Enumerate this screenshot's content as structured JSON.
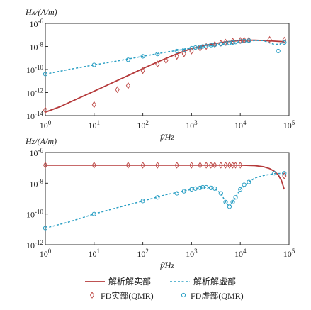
{
  "chart_data": [
    {
      "type": "line",
      "ylabel": "Hx/(A/m)",
      "xlabel": "f/Hz",
      "xscale": "log",
      "yscale": "log",
      "xlim": [
        1,
        100000
      ],
      "ylim": [
        1e-14,
        1e-06
      ],
      "x_ticks": [
        {
          "value": 1,
          "base": "10",
          "exp": "0"
        },
        {
          "value": 10,
          "base": "10",
          "exp": "1"
        },
        {
          "value": 100,
          "base": "10",
          "exp": "2"
        },
        {
          "value": 1000,
          "base": "10",
          "exp": "3"
        },
        {
          "value": 10000,
          "base": "10",
          "exp": "4"
        },
        {
          "value": 100000,
          "base": "10",
          "exp": "5"
        }
      ],
      "y_ticks": [
        {
          "value": 1e-06,
          "base": "10",
          "exp": "-6"
        },
        {
          "value": 1e-08,
          "base": "10",
          "exp": "-8"
        },
        {
          "value": 1e-10,
          "base": "10",
          "exp": "-10"
        },
        {
          "value": 1e-12,
          "base": "10",
          "exp": "-12"
        },
        {
          "value": 1e-14,
          "base": "10",
          "exp": "-14"
        }
      ],
      "series": [
        {
          "name": "解析解实部",
          "kind": "line",
          "color": "#b5393a",
          "x": [
            1,
            2,
            5,
            10,
            20,
            50,
            100,
            200,
            500,
            1000,
            2000,
            5000,
            10000,
            15000,
            20000,
            30000,
            50000,
            80000
          ],
          "y": [
            2e-14,
            6e-14,
            3.5e-13,
            1.3e-12,
            5e-12,
            3e-11,
            1.2e-10,
            4.5e-10,
            2.3e-09,
            6.5e-09,
            1.3e-08,
            2.5e-08,
            3.3e-08,
            3.5e-08,
            3.5e-08,
            3.3e-08,
            2.9e-08,
            2.6e-08
          ]
        },
        {
          "name": "解析解虚部",
          "kind": "dashed",
          "color": "#2a9fc4",
          "x": [
            1,
            3,
            10,
            30,
            100,
            300,
            1000,
            3000,
            10000,
            15000,
            20000,
            30000,
            40000,
            50000,
            65000,
            80000
          ],
          "y": [
            4e-11,
            1e-10,
            2.5e-10,
            5.5e-10,
            1.4e-09,
            3.2e-09,
            7e-09,
            1.3e-08,
            2.3e-08,
            2.9e-08,
            3.3e-08,
            3.2e-08,
            2e-08,
            1.5e-08,
            1.6e-08,
            2.6e-08
          ]
        },
        {
          "name": "FD实部(QMR)",
          "kind": "diamond",
          "color": "#c0504d",
          "x": [
            1,
            10,
            30,
            50,
            100,
            200,
            300,
            500,
            700,
            1000,
            1500,
            2000,
            3000,
            4000,
            5000,
            7000,
            10000,
            12000,
            15000,
            40000,
            80000
          ],
          "y": [
            3e-14,
            9e-14,
            1.8e-12,
            4e-12,
            8e-11,
            3e-10,
            6e-10,
            1.4e-09,
            2.3e-09,
            4e-09,
            7e-09,
            1e-08,
            1.5e-08,
            1.9e-08,
            2.3e-08,
            2.9e-08,
            3.3e-08,
            3.5e-08,
            3.5e-08,
            4e-08,
            3.5e-08
          ]
        },
        {
          "name": "FD虚部(QMR)",
          "kind": "circle",
          "color": "#2a9fc4",
          "x": [
            1,
            10,
            50,
            100,
            200,
            500,
            700,
            1000,
            1200,
            1500,
            1700,
            2000,
            2500,
            3000,
            4000,
            5000,
            6000,
            7000,
            8000,
            10000,
            12000,
            15000,
            60000,
            80000
          ],
          "y": [
            4e-11,
            2.5e-10,
            7e-10,
            1.4e-09,
            2.2e-09,
            4e-09,
            5e-09,
            7e-09,
            8e-09,
            9e-09,
            1e-08,
            1.1e-08,
            1.3e-08,
            1.4e-08,
            1.6e-08,
            1.8e-08,
            2e-08,
            2.2e-08,
            2.4e-08,
            2.7e-08,
            2.9e-08,
            3.2e-08,
            4e-09,
            2.2e-08
          ]
        }
      ]
    },
    {
      "type": "line",
      "ylabel": "Hz/(A/m)",
      "xlabel": "f/Hz",
      "xscale": "log",
      "yscale": "log",
      "xlim": [
        1,
        100000
      ],
      "ylim": [
        1e-12,
        1e-06
      ],
      "x_ticks": [
        {
          "value": 1,
          "base": "10",
          "exp": "0"
        },
        {
          "value": 10,
          "base": "10",
          "exp": "1"
        },
        {
          "value": 100,
          "base": "10",
          "exp": "2"
        },
        {
          "value": 1000,
          "base": "10",
          "exp": "3"
        },
        {
          "value": 10000,
          "base": "10",
          "exp": "4"
        },
        {
          "value": 100000,
          "base": "10",
          "exp": "5"
        }
      ],
      "y_ticks": [
        {
          "value": 1e-06,
          "base": "10",
          "exp": "-6"
        },
        {
          "value": 1e-08,
          "base": "10",
          "exp": "-8"
        },
        {
          "value": 1e-10,
          "base": "10",
          "exp": "-10"
        },
        {
          "value": 1e-12,
          "base": "10",
          "exp": "-12"
        }
      ],
      "series": [
        {
          "name": "解析解实部",
          "kind": "line",
          "color": "#b5393a",
          "x": [
            1,
            10,
            100,
            1000,
            5000,
            10000,
            20000,
            30000,
            40000,
            50000,
            60000,
            70000,
            80000
          ],
          "y": [
            1.5e-07,
            1.5e-07,
            1.5e-07,
            1.5e-07,
            1.5e-07,
            1.5e-07,
            1.4e-07,
            1.2e-07,
            9e-08,
            6e-08,
            3.5e-08,
            1.5e-08,
            4e-09
          ]
        },
        {
          "name": "解析解虚部",
          "kind": "dashed",
          "color": "#2a9fc4",
          "x": [
            1,
            3,
            10,
            30,
            100,
            300,
            1000,
            2000,
            3000,
            4000,
            5000,
            6000,
            7000,
            8000,
            10000,
            15000,
            20000,
            30000,
            50000,
            80000
          ],
          "y": [
            1.2e-11,
            3e-11,
            1e-10,
            2.6e-10,
            7e-10,
            1.8e-09,
            4e-09,
            5.5e-09,
            4.5e-09,
            2.2e-09,
            6e-10,
            3e-10,
            6e-10,
            1.2e-09,
            4e-09,
            1.2e-08,
            2.2e-08,
            3.2e-08,
            4.2e-08,
            4.5e-08
          ]
        },
        {
          "name": "FD实部(QMR)",
          "kind": "diamond",
          "color": "#c0504d",
          "x": [
            1,
            10,
            50,
            100,
            200,
            500,
            1000,
            1500,
            2000,
            2500,
            3000,
            4000,
            5000,
            6000,
            7000,
            8000,
            10000,
            80000
          ],
          "y": [
            1.5e-07,
            1.5e-07,
            1.5e-07,
            1.5e-07,
            1.5e-07,
            1.5e-07,
            1.5e-07,
            1.5e-07,
            1.5e-07,
            1.5e-07,
            1.5e-07,
            1.5e-07,
            1.5e-07,
            1.5e-07,
            1.5e-07,
            1.5e-07,
            1.5e-07,
            3e-08
          ]
        },
        {
          "name": "FD虚部(QMR)",
          "kind": "circle",
          "color": "#2a9fc4",
          "x": [
            1,
            10,
            100,
            200,
            500,
            700,
            1000,
            1200,
            1500,
            1700,
            2000,
            2500,
            3000,
            4000,
            5000,
            6000,
            7000,
            8000,
            10000,
            12000,
            15000,
            50000,
            80000
          ],
          "y": [
            1.2e-11,
            1e-10,
            7e-10,
            1.2e-09,
            2.2e-09,
            3e-09,
            4e-09,
            4.5e-09,
            5e-09,
            5.5e-09,
            5.5e-09,
            5e-09,
            4.5e-09,
            2.2e-09,
            6e-10,
            3e-10,
            6e-10,
            1.2e-09,
            4e-09,
            8e-09,
            1.2e-08,
            4.5e-08,
            4.5e-08
          ]
        }
      ]
    }
  ],
  "legend": {
    "items": [
      "解析解实部",
      "解析解虚部",
      "FD实部(QMR)",
      "FD虚部(QMR)"
    ]
  }
}
